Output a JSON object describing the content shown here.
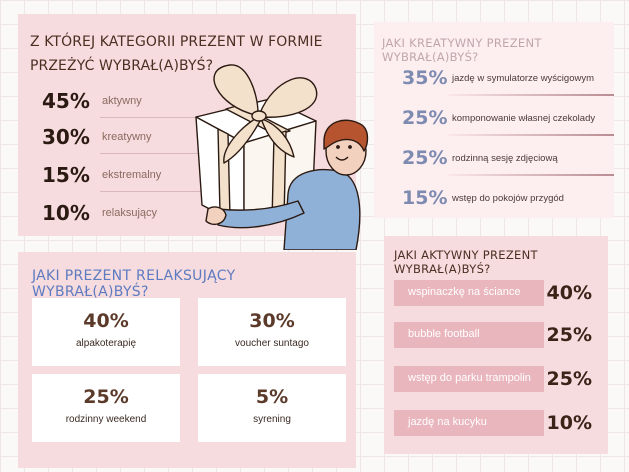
{
  "categories": {
    "title": "Z której kategorii prezent w formie przeżyć wybrał(a)byś?",
    "items": [
      {
        "pct": "45%",
        "label": "aktywny"
      },
      {
        "pct": "30%",
        "label": "kreatywny"
      },
      {
        "pct": "15%",
        "label": "ekstremalny"
      },
      {
        "pct": "10%",
        "label": "relaksujący"
      }
    ]
  },
  "creative": {
    "title": "JAKI KREATYWNY PREZENT WYBRAŁ(A)BYŚ?",
    "items": [
      {
        "pct": "35%",
        "label": "jazdę w symulatorze wyścigowym"
      },
      {
        "pct": "25%",
        "label": "komponowanie własnej czekolady"
      },
      {
        "pct": "25%",
        "label": "rodzinną sesję zdjęciową"
      },
      {
        "pct": "15%",
        "label": "wstęp do pokojów przygód"
      }
    ]
  },
  "relax": {
    "title": "JAKI PREZENT RELAKSUJĄCY WYBRAŁ(A)BYŚ?",
    "items": [
      {
        "pct": "40%",
        "label": "alpakoterapię"
      },
      {
        "pct": "30%",
        "label": "voucher suntago"
      },
      {
        "pct": "25%",
        "label": "rodzinny weekend"
      },
      {
        "pct": "5%",
        "label": "syrening"
      }
    ]
  },
  "active": {
    "title": "JAKI AKTYWNY PREZENT WYBRAŁ(A)BYŚ?",
    "items": [
      {
        "pct": "40%",
        "label": "wspinaczkę na ściance"
      },
      {
        "pct": "25%",
        "label": "bubble football"
      },
      {
        "pct": "25%",
        "label": "wstęp do parku trampolin"
      },
      {
        "pct": "10%",
        "label": "jazdę na kucyku"
      }
    ]
  },
  "colors": {
    "panel_pink": "#f7dcdf",
    "accent_blue": "#5c7bc0",
    "accent_periwinkle": "#7e8bb0",
    "bar_pink": "#e9b6bd",
    "text_dark": "#3a2418"
  }
}
